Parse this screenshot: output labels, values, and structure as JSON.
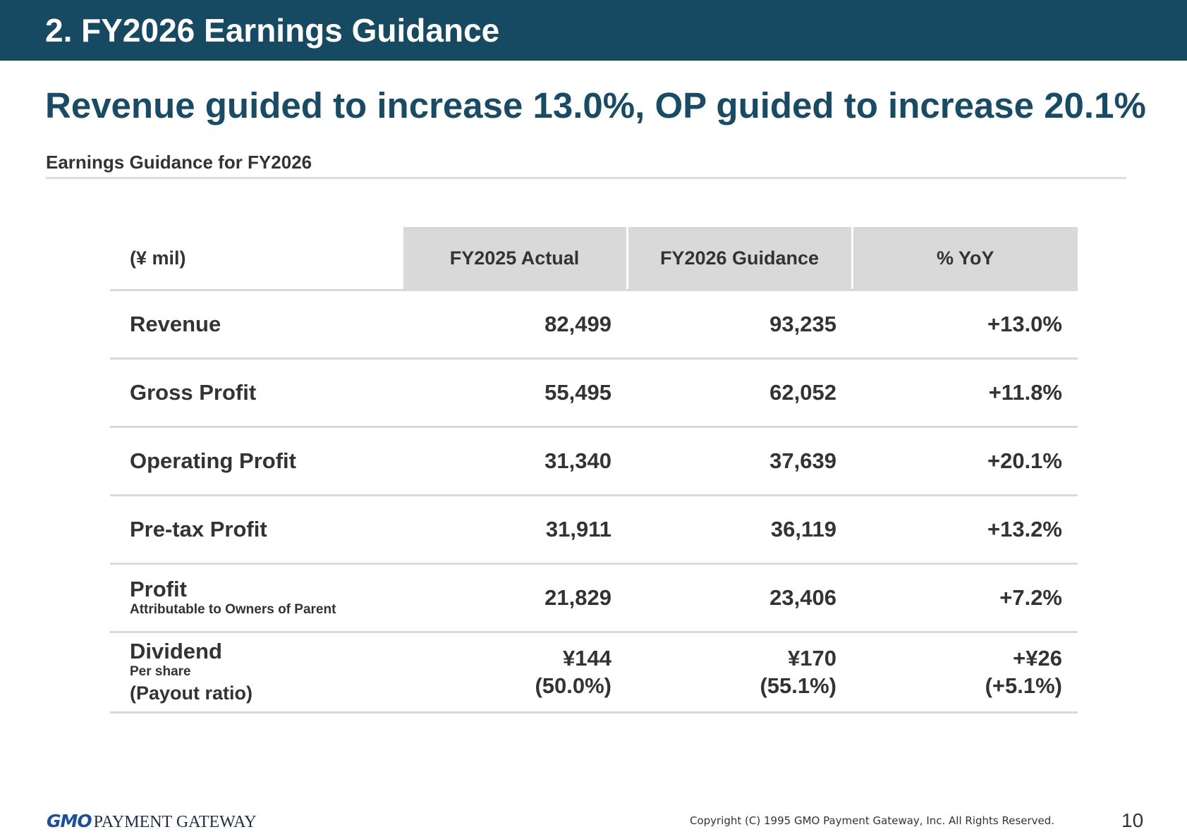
{
  "header": {
    "title": "2.  FY2026 Earnings Guidance"
  },
  "headline": "Revenue guided to increase 13.0%, OP guided to increase 20.1%",
  "subtitle": "Earnings Guidance for FY2026",
  "table": {
    "unit": "(¥ mil)",
    "columns": [
      "FY2025 Actual",
      "FY2026 Guidance",
      "% YoY"
    ],
    "rows": [
      {
        "label": "Revenue",
        "sub": "",
        "actual": "82,499",
        "guidance": "93,235",
        "yoy": "+13.0%"
      },
      {
        "label": "Gross Profit",
        "sub": "",
        "actual": "55,495",
        "guidance": "62,052",
        "yoy": "+11.8%"
      },
      {
        "label": "Operating Profit",
        "sub": "",
        "actual": "31,340",
        "guidance": "37,639",
        "yoy": "+20.1%"
      },
      {
        "label": "Pre-tax Profit",
        "sub": "",
        "actual": "31,911",
        "guidance": "36,119",
        "yoy": "+13.2%"
      },
      {
        "label": "Profit",
        "sub": "Attributable to Owners of Parent",
        "actual": "21,829",
        "guidance": "23,406",
        "yoy": "+7.2%"
      }
    ],
    "dividend": {
      "label": "Dividend",
      "sub": "Per share",
      "sub2": "(Payout ratio)",
      "actual": "¥144",
      "actual_ratio": "(50.0%)",
      "guidance": "¥170",
      "guidance_ratio": "(55.1%)",
      "yoy": "+¥26",
      "yoy_ratio": "(+5.1%)"
    }
  },
  "footer": {
    "logo_mark": "GMO",
    "logo_text": "PAYMENT GATEWAY",
    "copyright": "Copyright (C) 1995 GMO Payment Gateway, Inc. All Rights Reserved.",
    "page_number": "10"
  },
  "colors": {
    "header_bar": "#164a62",
    "headline": "#174b66",
    "table_header_fill": "#d9d9d9",
    "logo_blue": "#1a4fa0"
  }
}
